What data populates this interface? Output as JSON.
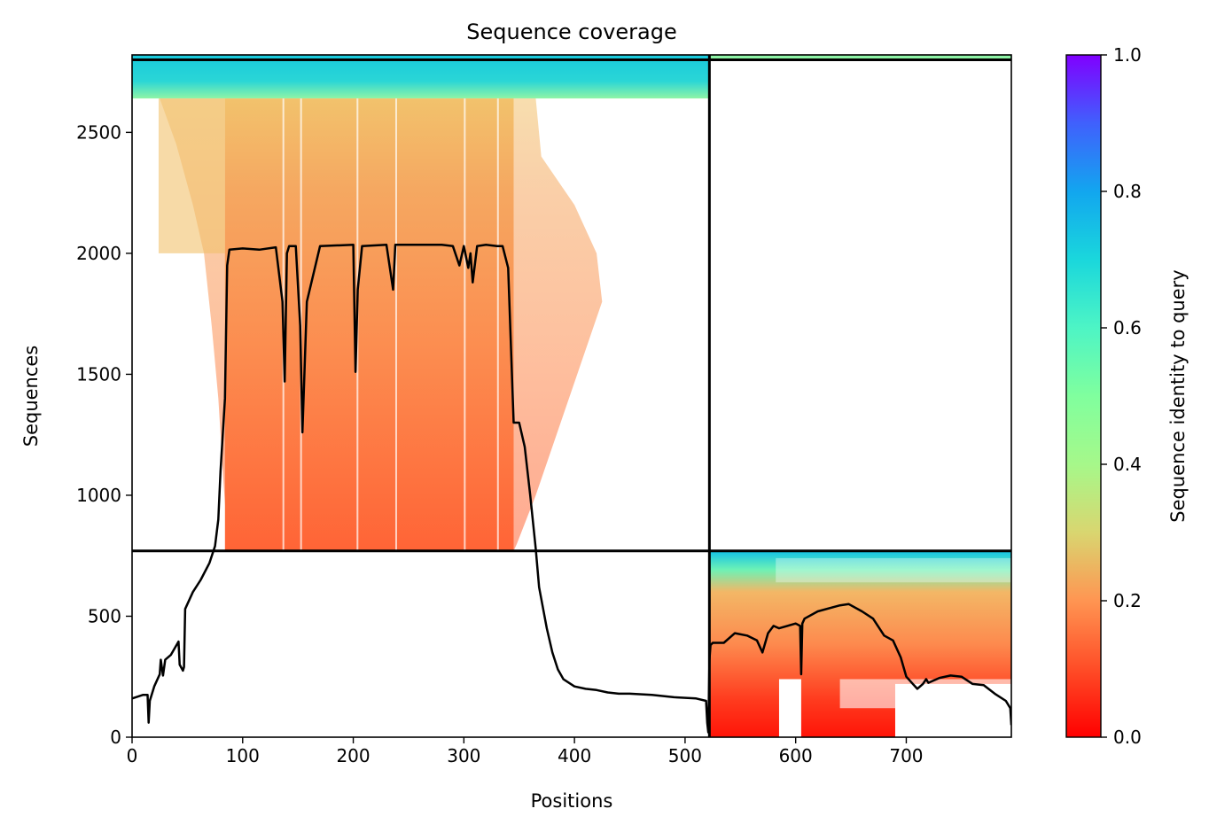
{
  "chart_data": {
    "type": "heatmap",
    "title": "Sequence coverage",
    "xlabel": "Positions",
    "ylabel": "Sequences",
    "xlim": [
      0,
      795
    ],
    "ylim": [
      0,
      2820
    ],
    "x_ticks": [
      0,
      100,
      200,
      300,
      400,
      500,
      600,
      700
    ],
    "y_ticks": [
      0,
      500,
      1000,
      1500,
      2000,
      2500
    ],
    "colorbar": {
      "label": "Sequence identity to query",
      "colormap": "rainbow_r",
      "range": [
        0.0,
        1.0
      ],
      "ticks": [
        0.0,
        0.2,
        0.4,
        0.6,
        0.8,
        1.0
      ],
      "tick_labels": [
        "0.0",
        "0.2",
        "0.4",
        "0.6",
        "0.8",
        "1.0"
      ]
    },
    "chain_boundary_position": 522,
    "pairing_boundary_sequence": 770,
    "coverage_line": {
      "x": [
        0,
        10,
        14,
        15,
        16,
        20,
        25,
        26,
        28,
        30,
        35,
        42,
        43,
        46,
        47,
        48,
        55,
        62,
        70,
        75,
        78,
        80,
        84,
        86,
        88,
        100,
        115,
        130,
        136,
        138,
        140,
        142,
        148,
        152,
        154,
        158,
        170,
        200,
        202,
        204,
        208,
        230,
        236,
        238,
        240,
        260,
        280,
        290,
        296,
        300,
        304,
        306,
        308,
        312,
        320,
        330,
        335,
        340,
        345,
        350,
        355,
        360,
        365,
        368,
        375,
        380,
        385,
        390,
        400,
        410,
        420,
        430,
        440,
        450,
        470,
        490,
        510,
        519,
        520,
        521,
        522,
        523,
        525,
        530,
        535,
        545,
        556,
        565,
        570,
        575,
        580,
        585,
        600,
        604,
        605,
        606,
        608,
        620,
        640,
        648,
        660,
        670,
        680,
        688,
        695,
        700,
        706,
        710,
        715,
        718,
        720,
        730,
        740,
        750,
        760,
        770,
        780,
        790,
        794,
        795
      ],
      "y": [
        160,
        175,
        175,
        60,
        150,
        210,
        260,
        320,
        255,
        320,
        340,
        395,
        300,
        275,
        290,
        530,
        600,
        650,
        720,
        790,
        900,
        1100,
        1400,
        1950,
        2015,
        2020,
        2015,
        2025,
        1800,
        1470,
        2000,
        2030,
        2030,
        1700,
        1260,
        1800,
        2030,
        2035,
        1510,
        1850,
        2030,
        2035,
        1850,
        2035,
        2035,
        2035,
        2035,
        2030,
        1950,
        2030,
        1940,
        2000,
        1880,
        2030,
        2035,
        2030,
        2030,
        1940,
        1300,
        1300,
        1200,
        1000,
        780,
        620,
        450,
        350,
        280,
        240,
        210,
        200,
        195,
        185,
        180,
        180,
        175,
        165,
        160,
        150,
        60,
        20,
        320,
        380,
        390,
        390,
        390,
        430,
        420,
        400,
        350,
        430,
        460,
        450,
        470,
        460,
        260,
        470,
        490,
        520,
        545,
        550,
        520,
        490,
        420,
        400,
        330,
        250,
        220,
        200,
        220,
        240,
        225,
        245,
        255,
        250,
        220,
        215,
        180,
        150,
        120,
        50
      ]
    }
  }
}
